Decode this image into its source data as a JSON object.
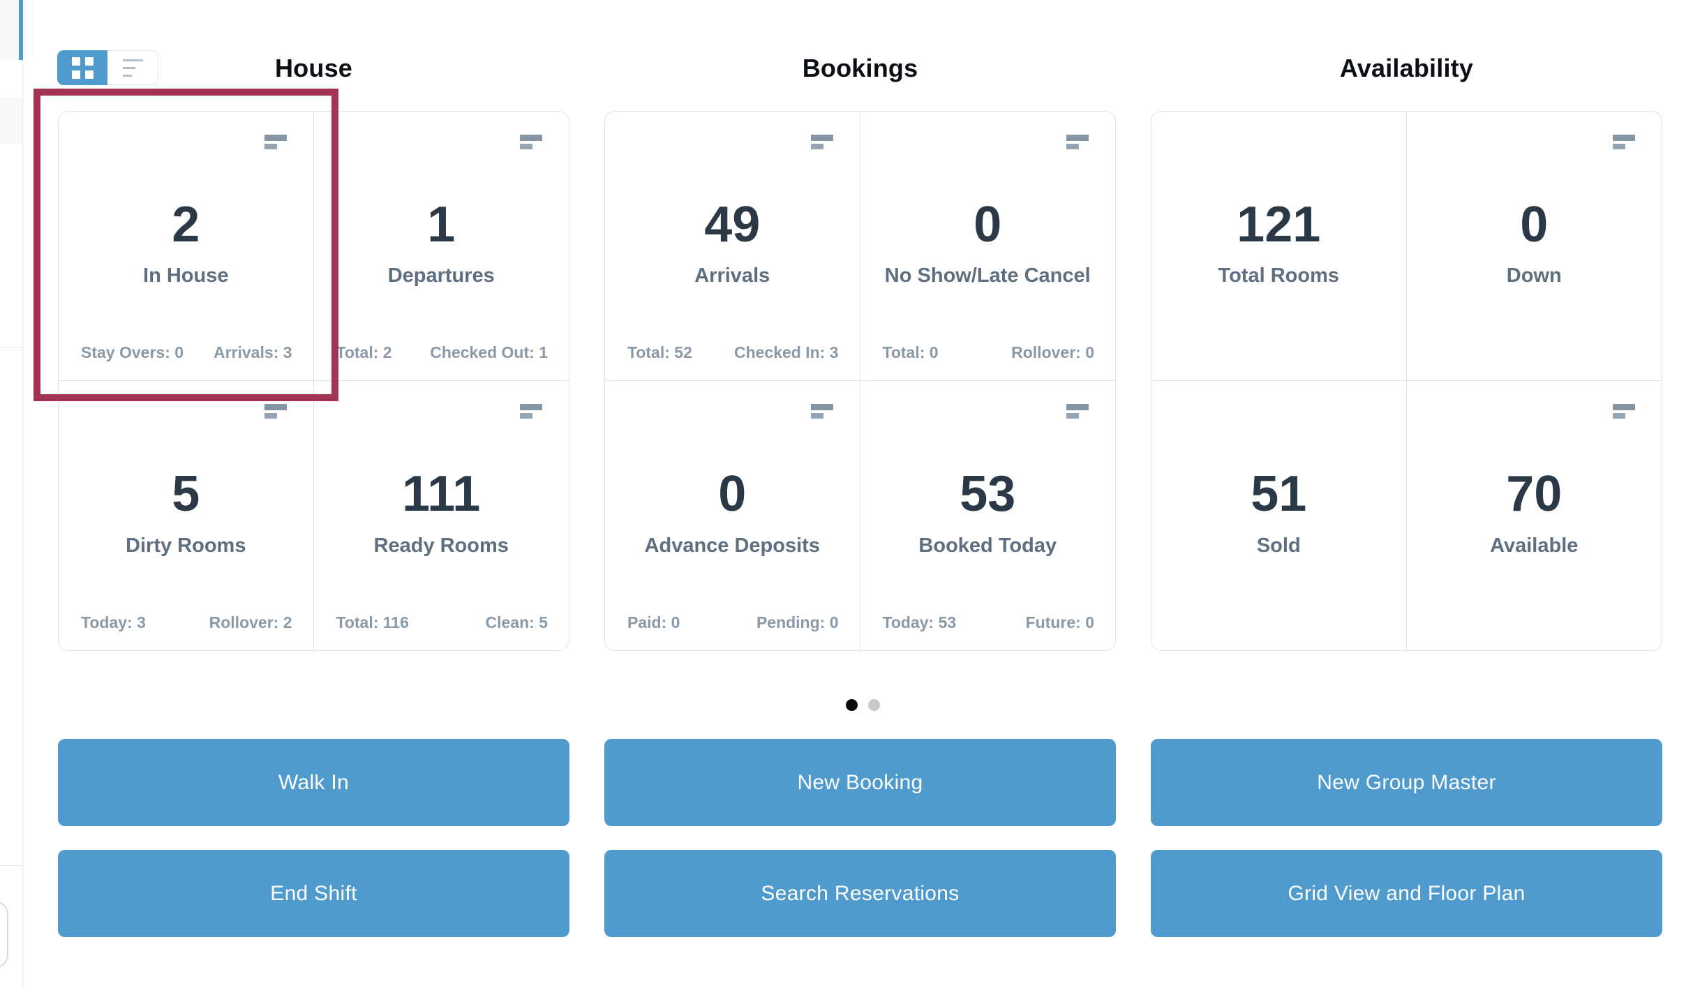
{
  "icons": {
    "grid_view": "grid-icon",
    "list_view": "list-lines-icon",
    "card_menu": "sort-lines-icon"
  },
  "sections": [
    {
      "title": "House",
      "cards": [
        {
          "name": "in-house",
          "value": "2",
          "label": "In House",
          "footer_left": "Stay Overs: 0",
          "footer_right": "Arrivals: 3",
          "has_icon": true,
          "highlighted": true
        },
        {
          "name": "departures",
          "value": "1",
          "label": "Departures",
          "footer_left": "Total: 2",
          "footer_right": "Checked Out: 1",
          "has_icon": true,
          "highlighted": false
        },
        {
          "name": "dirty-rooms",
          "value": "5",
          "label": "Dirty Rooms",
          "footer_left": "Today: 3",
          "footer_right": "Rollover: 2",
          "has_icon": true,
          "highlighted": false
        },
        {
          "name": "ready-rooms",
          "value": "111",
          "label": "Ready Rooms",
          "footer_left": "Total: 116",
          "footer_right": "Clean: 5",
          "has_icon": true,
          "highlighted": false
        }
      ]
    },
    {
      "title": "Bookings",
      "cards": [
        {
          "name": "arrivals",
          "value": "49",
          "label": "Arrivals",
          "footer_left": "Total: 52",
          "footer_right": "Checked In: 3",
          "has_icon": true,
          "highlighted": false
        },
        {
          "name": "no-show-late-cancel",
          "value": "0",
          "label": "No Show/Late Cancel",
          "footer_left": "Total: 0",
          "footer_right": "Rollover: 0",
          "has_icon": true,
          "highlighted": false
        },
        {
          "name": "advance-deposits",
          "value": "0",
          "label": "Advance Deposits",
          "footer_left": "Paid: 0",
          "footer_right": "Pending: 0",
          "has_icon": true,
          "highlighted": false
        },
        {
          "name": "booked-today",
          "value": "53",
          "label": "Booked Today",
          "footer_left": "Today: 53",
          "footer_right": "Future: 0",
          "has_icon": true,
          "highlighted": false
        }
      ]
    },
    {
      "title": "Availability",
      "cards": [
        {
          "name": "total-rooms",
          "value": "121",
          "label": "Total Rooms",
          "has_icon": false,
          "highlighted": false
        },
        {
          "name": "down",
          "value": "0",
          "label": "Down",
          "has_icon": true,
          "highlighted": false
        },
        {
          "name": "sold",
          "value": "51",
          "label": "Sold",
          "has_icon": false,
          "highlighted": false
        },
        {
          "name": "available",
          "value": "70",
          "label": "Available",
          "has_icon": true,
          "highlighted": false
        }
      ]
    }
  ],
  "pagination": {
    "dot_count": 2,
    "active_dot": 1
  },
  "actions": {
    "walk_in": "Walk In",
    "new_booking": "New Booking",
    "new_group_master": "New Group Master",
    "end_shift": "End Shift",
    "search_reservations": "Search Reservations",
    "grid_view_floor_plan": "Grid View and Floor Plan"
  },
  "colors": {
    "accent_blue": "#4f9bcd",
    "highlight_box": "#a33454",
    "value_text": "#2b3947",
    "label_text": "#5d6f80",
    "footer_text": "#8a99a7",
    "card_border": "#dfe4e9",
    "title_text": "#0b0f14",
    "dot_active": "#0b0b0b",
    "dot_inactive": "#c9c9c9"
  }
}
